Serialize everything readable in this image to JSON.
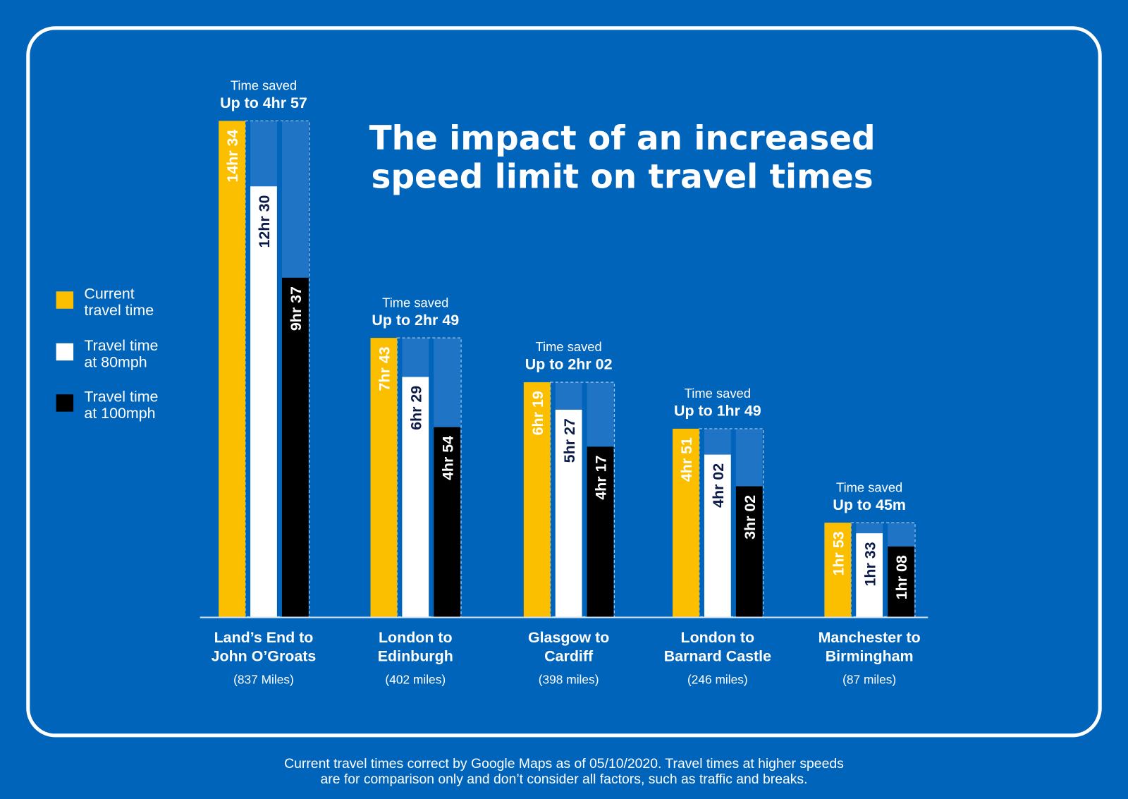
{
  "chart_data": {
    "type": "bar",
    "title": [
      "The impact of an increased",
      "speed limit on travel times"
    ],
    "categories": [
      {
        "name": [
          "Land’s End to",
          "John O’Groats"
        ],
        "distance": "(837 Miles)"
      },
      {
        "name": [
          "London to",
          "Edinburgh"
        ],
        "distance": "(402 miles)"
      },
      {
        "name": [
          "Glasgow to",
          "Cardiff"
        ],
        "distance": "(398 miles)"
      },
      {
        "name": [
          "London to",
          "Barnard Castle"
        ],
        "distance": "(246 miles)"
      },
      {
        "name": [
          "Manchester to",
          "Birmingham"
        ],
        "distance": "(87 miles)"
      }
    ],
    "series": [
      {
        "name": "Current travel time",
        "legend": [
          "Current",
          "travel time"
        ],
        "color": "#fcbf00",
        "text_color": "#ffffff",
        "values": [
          874,
          463,
          379,
          291,
          113
        ],
        "labels": [
          "14hr 34",
          "7hr 43",
          "6hr 19",
          "4hr 51",
          "1hr 53"
        ]
      },
      {
        "name": "Travel time at 80mph",
        "legend": [
          "Travel time",
          "at 80mph"
        ],
        "color": "#ffffff",
        "text_color": "#0c1a4a",
        "values": [
          750,
          389,
          327,
          242,
          93
        ],
        "labels": [
          "12hr 30",
          "6hr 29",
          "5hr 27",
          "4hr 02",
          "1hr 33"
        ]
      },
      {
        "name": "Travel time at 100mph",
        "legend": [
          "Travel time",
          "at 100mph"
        ],
        "color": "#000000",
        "text_color": "#ffffff",
        "values": [
          577,
          294,
          257,
          182,
          68
        ],
        "labels": [
          "9hr 37",
          "4hr 54",
          "4hr 17",
          "3hr 02",
          "1hr 08"
        ]
      }
    ],
    "annotations": {
      "time_saved_label": "Time saved",
      "time_saved": [
        "Up to 4hr 57",
        "Up to 2hr 49",
        "Up to 2hr 02",
        "Up to 1hr 49",
        "Up to 45m"
      ]
    },
    "yunit": "minutes",
    "ylim": [
      -65,
      874
    ],
    "grid": false,
    "legend_position": "left"
  },
  "footer": [
    "Current travel times correct by Google Maps as of 05/10/2020. Travel times at higher speeds",
    "are for comparison only and don’t consider all factors, such as traffic and breaks."
  ],
  "colors": {
    "background": "#0064bb",
    "saved_fill": "#1f74c6",
    "frame": "#ffffff"
  }
}
